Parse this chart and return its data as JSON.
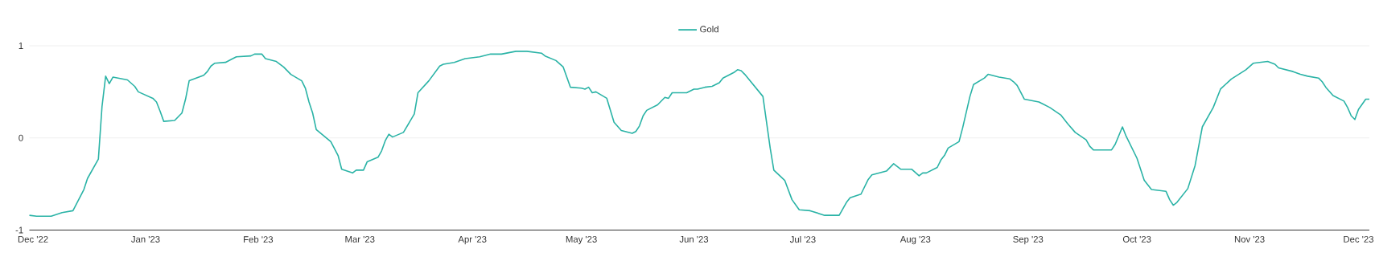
{
  "chart_data": {
    "type": "line",
    "xlim": [
      "2022-11-30",
      "2023-12-04"
    ],
    "ylim": [
      -1,
      1
    ],
    "xticks": [
      {
        "value": "2022-12-01",
        "label": "Dec '22"
      },
      {
        "value": "2023-01-01",
        "label": "Jan '23"
      },
      {
        "value": "2023-02-01",
        "label": "Feb '23"
      },
      {
        "value": "2023-03-01",
        "label": "Mar '23"
      },
      {
        "value": "2023-04-01",
        "label": "Apr '23"
      },
      {
        "value": "2023-05-01",
        "label": "May '23"
      },
      {
        "value": "2023-06-01",
        "label": "Jun '23"
      },
      {
        "value": "2023-07-01",
        "label": "Jul '23"
      },
      {
        "value": "2023-08-01",
        "label": "Aug '23"
      },
      {
        "value": "2023-09-01",
        "label": "Sep '23"
      },
      {
        "value": "2023-10-01",
        "label": "Oct '23"
      },
      {
        "value": "2023-11-01",
        "label": "Nov '23"
      },
      {
        "value": "2023-12-01",
        "label": "Dec '23"
      }
    ],
    "yticks": [
      -1,
      0,
      1
    ],
    "grid": "y",
    "legend": "top",
    "marker": "none",
    "line_style": "solid",
    "series": [
      {
        "name": "Gold",
        "color": "#2ab3a6",
        "x": [
          "2022-11-30",
          "2022-12-02",
          "2022-12-06",
          "2022-12-09",
          "2022-12-12",
          "2022-12-15",
          "2022-12-16",
          "2022-12-19",
          "2022-12-20",
          "2022-12-21",
          "2022-12-22",
          "2022-12-23",
          "2022-12-27",
          "2022-12-29",
          "2022-12-30",
          "2023-01-03",
          "2023-01-04",
          "2023-01-05",
          "2023-01-06",
          "2023-01-09",
          "2023-01-11",
          "2023-01-12",
          "2023-01-13",
          "2023-01-17",
          "2023-01-18",
          "2023-01-19",
          "2023-01-20",
          "2023-01-23",
          "2023-01-25",
          "2023-01-26",
          "2023-01-30",
          "2023-01-31",
          "2023-02-02",
          "2023-02-03",
          "2023-02-06",
          "2023-02-08",
          "2023-02-10",
          "2023-02-13",
          "2023-02-14",
          "2023-02-15",
          "2023-02-16",
          "2023-02-17",
          "2023-02-21",
          "2023-02-23",
          "2023-02-24",
          "2023-02-27",
          "2023-02-28",
          "2023-03-02",
          "2023-03-03",
          "2023-03-06",
          "2023-03-07",
          "2023-03-08",
          "2023-03-09",
          "2023-03-10",
          "2023-03-13",
          "2023-03-16",
          "2023-03-17",
          "2023-03-20",
          "2023-03-23",
          "2023-03-24",
          "2023-03-27",
          "2023-03-30",
          "2023-04-03",
          "2023-04-06",
          "2023-04-09",
          "2023-04-13",
          "2023-04-16",
          "2023-04-20",
          "2023-04-21",
          "2023-04-24",
          "2023-04-26",
          "2023-04-28",
          "2023-05-01",
          "2023-05-02",
          "2023-05-03",
          "2023-05-04",
          "2023-05-05",
          "2023-05-08",
          "2023-05-10",
          "2023-05-12",
          "2023-05-15",
          "2023-05-16",
          "2023-05-17",
          "2023-05-18",
          "2023-05-19",
          "2023-05-22",
          "2023-05-24",
          "2023-05-25",
          "2023-05-26",
          "2023-05-30",
          "2023-06-01",
          "2023-06-02",
          "2023-06-04",
          "2023-06-06",
          "2023-06-08",
          "2023-06-09",
          "2023-06-12",
          "2023-06-13",
          "2023-06-14",
          "2023-06-15",
          "2023-06-20",
          "2023-06-22",
          "2023-06-23",
          "2023-06-26",
          "2023-06-28",
          "2023-06-30",
          "2023-07-03",
          "2023-07-07",
          "2023-07-11",
          "2023-07-13",
          "2023-07-14",
          "2023-07-17",
          "2023-07-19",
          "2023-07-20",
          "2023-07-24",
          "2023-07-26",
          "2023-07-28",
          "2023-07-31",
          "2023-08-02",
          "2023-08-03",
          "2023-08-04",
          "2023-08-07",
          "2023-08-08",
          "2023-08-09",
          "2023-08-10",
          "2023-08-13",
          "2023-08-14",
          "2023-08-15",
          "2023-08-16",
          "2023-08-17",
          "2023-08-20",
          "2023-08-21",
          "2023-08-24",
          "2023-08-27",
          "2023-08-28",
          "2023-08-29",
          "2023-08-31",
          "2023-09-04",
          "2023-09-05",
          "2023-09-07",
          "2023-09-10",
          "2023-09-12",
          "2023-09-14",
          "2023-09-17",
          "2023-09-18",
          "2023-09-19",
          "2023-09-24",
          "2023-09-25",
          "2023-09-27",
          "2023-09-28",
          "2023-10-01",
          "2023-10-03",
          "2023-10-05",
          "2023-10-09",
          "2023-10-10",
          "2023-10-11",
          "2023-10-12",
          "2023-10-15",
          "2023-10-17",
          "2023-10-19",
          "2023-10-22",
          "2023-10-23",
          "2023-10-24",
          "2023-10-27",
          "2023-10-29",
          "2023-10-31",
          "2023-11-02",
          "2023-11-06",
          "2023-11-08",
          "2023-11-09",
          "2023-11-13",
          "2023-11-15",
          "2023-11-17",
          "2023-11-20",
          "2023-11-21",
          "2023-11-22",
          "2023-11-24",
          "2023-11-27",
          "2023-11-28",
          "2023-11-29",
          "2023-11-30",
          "2023-12-01",
          "2023-12-03",
          "2023-12-04"
        ],
        "values": [
          -0.84,
          -0.85,
          -0.85,
          -0.81,
          -0.79,
          -0.56,
          -0.44,
          -0.23,
          0.34,
          0.67,
          0.59,
          0.66,
          0.63,
          0.56,
          0.5,
          0.43,
          0.39,
          0.29,
          0.18,
          0.19,
          0.27,
          0.42,
          0.62,
          0.68,
          0.72,
          0.78,
          0.81,
          0.82,
          0.86,
          0.88,
          0.89,
          0.91,
          0.91,
          0.86,
          0.83,
          0.77,
          0.69,
          0.62,
          0.54,
          0.39,
          0.27,
          0.09,
          -0.04,
          -0.19,
          -0.34,
          -0.38,
          -0.35,
          -0.35,
          -0.26,
          -0.21,
          -0.14,
          -0.03,
          0.04,
          0.01,
          0.06,
          0.26,
          0.49,
          0.62,
          0.78,
          0.8,
          0.82,
          0.86,
          0.88,
          0.91,
          0.91,
          0.94,
          0.94,
          0.92,
          0.89,
          0.84,
          0.77,
          0.55,
          0.54,
          0.53,
          0.55,
          0.49,
          0.5,
          0.43,
          0.17,
          0.08,
          0.05,
          0.07,
          0.13,
          0.24,
          0.3,
          0.36,
          0.44,
          0.43,
          0.49,
          0.49,
          0.53,
          0.53,
          0.55,
          0.56,
          0.6,
          0.65,
          0.71,
          0.74,
          0.73,
          0.69,
          0.45,
          -0.11,
          -0.35,
          -0.46,
          -0.67,
          -0.78,
          -0.79,
          -0.84,
          -0.84,
          -0.7,
          -0.65,
          -0.61,
          -0.45,
          -0.4,
          -0.36,
          -0.28,
          -0.34,
          -0.34,
          -0.41,
          -0.38,
          -0.38,
          -0.32,
          -0.24,
          -0.19,
          -0.11,
          -0.04,
          0.11,
          0.28,
          0.45,
          0.58,
          0.65,
          0.69,
          0.66,
          0.64,
          0.61,
          0.57,
          0.42,
          0.39,
          0.37,
          0.33,
          0.25,
          0.15,
          0.06,
          -0.02,
          -0.09,
          -0.13,
          -0.13,
          -0.07,
          0.12,
          0.02,
          -0.22,
          -0.46,
          -0.56,
          -0.58,
          -0.67,
          -0.73,
          -0.7,
          -0.55,
          -0.3,
          0.12,
          0.33,
          0.43,
          0.53,
          0.64,
          0.69,
          0.74,
          0.81,
          0.83,
          0.8,
          0.76,
          0.72,
          0.69,
          0.67,
          0.65,
          0.61,
          0.55,
          0.46,
          0.4,
          0.33,
          0.24,
          0.2,
          0.31,
          0.42,
          0.42
        ]
      }
    ]
  }
}
